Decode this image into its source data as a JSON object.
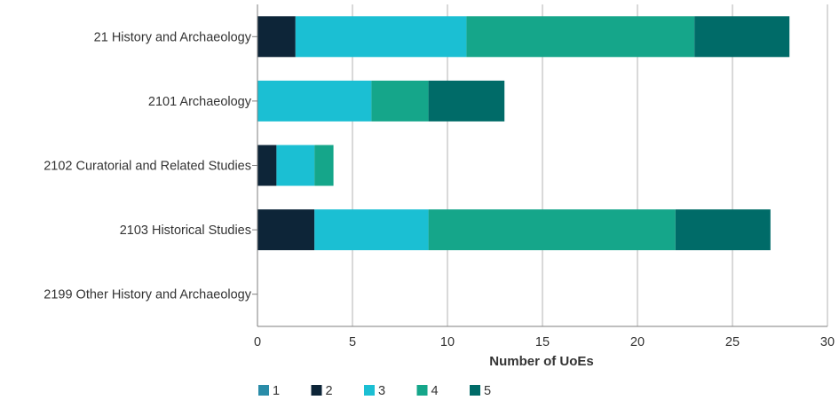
{
  "chart_data": {
    "type": "bar",
    "orientation": "horizontal",
    "stacked": true,
    "title": "",
    "xlabel": "Number of UoEs",
    "ylabel": "",
    "xlim": [
      0,
      30
    ],
    "xticks": [
      0,
      5,
      10,
      15,
      20,
      25,
      30
    ],
    "grid": "vertical",
    "legend_position": "bottom-left",
    "categories": [
      "21 History and Archaeology",
      "2101 Archaeology",
      "2102 Curatorial and Related Studies",
      "2103 Historical Studies",
      "2199 Other History and Archaeology"
    ],
    "series": [
      {
        "name": "1",
        "color": "#2a8ca8",
        "values": [
          0,
          0,
          0,
          0,
          0
        ]
      },
      {
        "name": "2",
        "color": "#0d2538",
        "values": [
          2,
          0,
          1,
          3,
          0
        ]
      },
      {
        "name": "3",
        "color": "#1bbfd3",
        "values": [
          9,
          6,
          2,
          6,
          0
        ]
      },
      {
        "name": "4",
        "color": "#15a68a",
        "values": [
          12,
          3,
          1,
          13,
          0
        ]
      },
      {
        "name": "5",
        "color": "#006b68",
        "values": [
          5,
          4,
          0,
          5,
          0
        ]
      }
    ]
  }
}
